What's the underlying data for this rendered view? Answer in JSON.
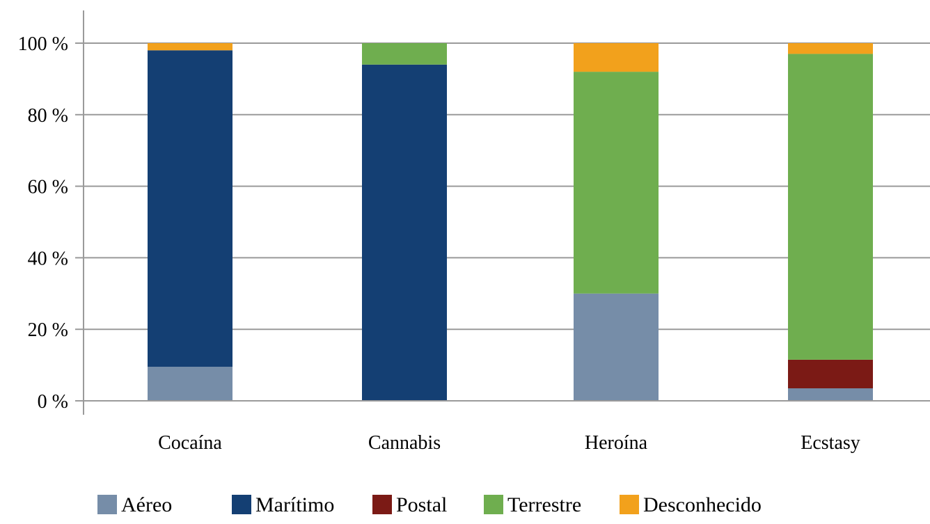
{
  "chart_data": {
    "type": "bar",
    "stacked": true,
    "categories": [
      "Cocaína",
      "Cannabis",
      "Heroína",
      "Ecstasy"
    ],
    "series": [
      {
        "name": "Aéreo",
        "color": "#768da8",
        "values": [
          9.5,
          0,
          30,
          3.5
        ]
      },
      {
        "name": "Marítimo",
        "color": "#143f73",
        "values": [
          88.5,
          94,
          0,
          0
        ]
      },
      {
        "name": "Postal",
        "color": "#7b1a15",
        "values": [
          0,
          0,
          0,
          8
        ]
      },
      {
        "name": "Terrestre",
        "color": "#6fae4f",
        "values": [
          0,
          6,
          62,
          85.5
        ]
      },
      {
        "name": "Desconhecido",
        "color": "#f2a11c",
        "values": [
          2,
          0,
          8,
          3
        ]
      }
    ],
    "yaxis": {
      "min": 0,
      "max": 100,
      "step": 20,
      "tick_labels": [
        "0 %",
        "20 %",
        "40 %",
        "60 %",
        "80 %",
        "100 %"
      ]
    },
    "grid": true,
    "legend_position": "bottom"
  }
}
